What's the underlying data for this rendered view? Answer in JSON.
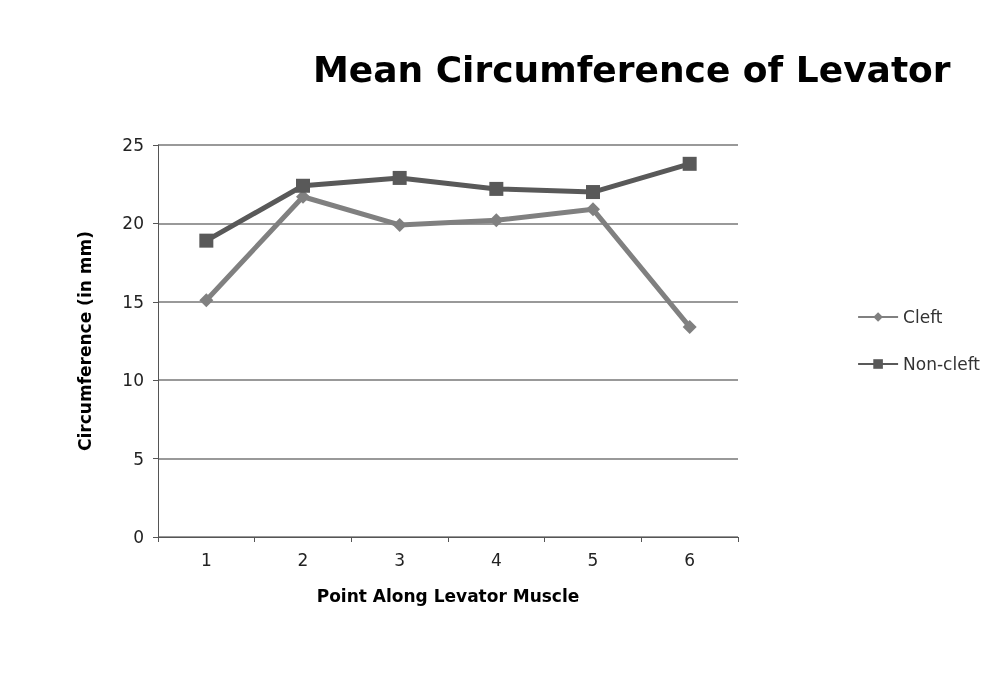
{
  "chart_data": {
    "type": "line",
    "title": "Mean Circumference of Levator",
    "xlabel": "Point Along Levator Muscle",
    "ylabel": "Circumference (in mm)",
    "categories": [
      "1",
      "2",
      "3",
      "4",
      "5",
      "6"
    ],
    "series": [
      {
        "name": "Cleft",
        "color": "#808080",
        "marker": "diamond",
        "values": [
          15.1,
          21.7,
          19.9,
          20.2,
          20.9,
          13.4
        ]
      },
      {
        "name": "Non-cleft",
        "color": "#595959",
        "marker": "square",
        "values": [
          18.9,
          22.4,
          22.9,
          22.2,
          22.0,
          23.8
        ]
      }
    ],
    "ylim": [
      0,
      25
    ],
    "yticks": [
      0,
      5,
      10,
      15,
      20,
      25
    ],
    "grid": "y",
    "legend": "right"
  }
}
